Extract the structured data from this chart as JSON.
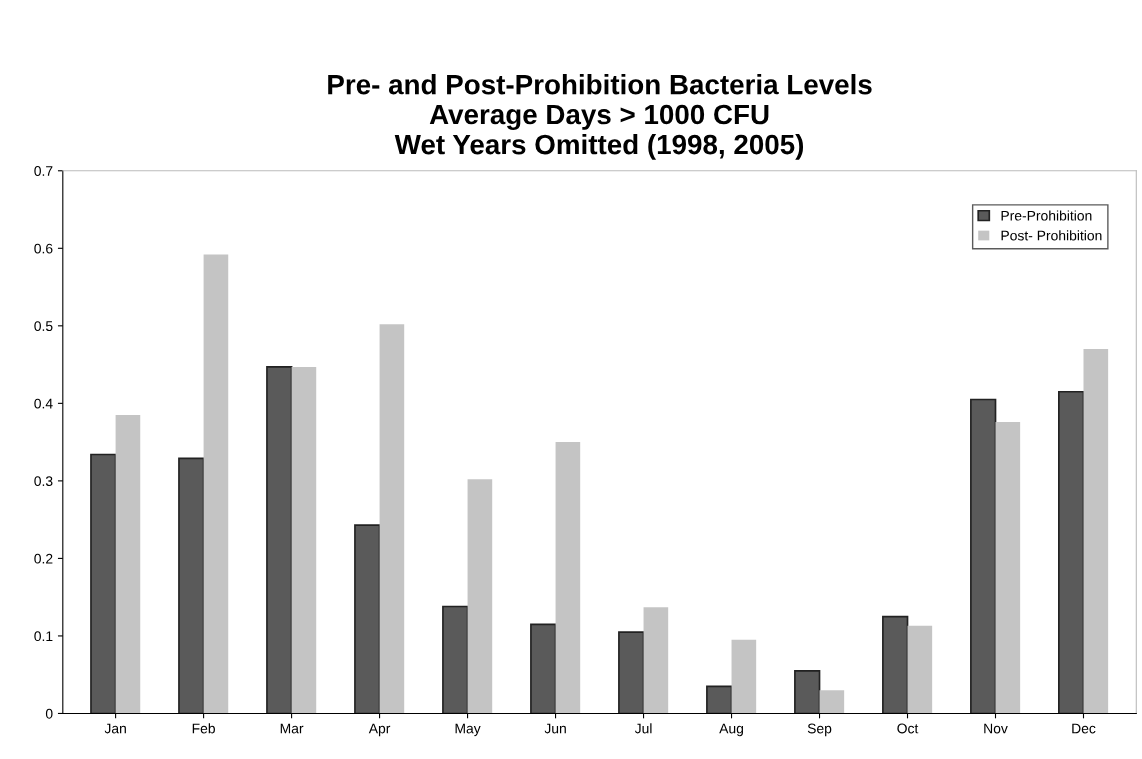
{
  "chart_data": {
    "type": "bar",
    "title": "Pre- and Post-Prohibition Bacteria Levels\nAverage Days > 1000 CFU\nWet Years Omitted (1998, 2005)",
    "categories": [
      "Jan",
      "Feb",
      "Mar",
      "Apr",
      "May",
      "Jun",
      "Jul",
      "Aug",
      "Sep",
      "Oct",
      "Nov",
      "Dec"
    ],
    "series": [
      {
        "name": "Pre-Prohibition",
        "color": "#5a5a5a",
        "values": [
          0.334,
          0.329,
          0.447,
          0.243,
          0.138,
          0.115,
          0.105,
          0.035,
          0.055,
          0.125,
          0.405,
          0.415
        ]
      },
      {
        "name": "Post- Prohibition",
        "color": "#c4c4c4",
        "values": [
          0.385,
          0.592,
          0.447,
          0.502,
          0.302,
          0.35,
          0.137,
          0.095,
          0.03,
          0.113,
          0.376,
          0.47
        ]
      }
    ],
    "ylim": [
      0,
      0.7
    ],
    "yticks": [
      {
        "value": 0,
        "label": "0"
      },
      0.1,
      0.2,
      0.3,
      0.4,
      0.5,
      0.6,
      0.7
    ],
    "grid": false,
    "legend": "top right"
  }
}
